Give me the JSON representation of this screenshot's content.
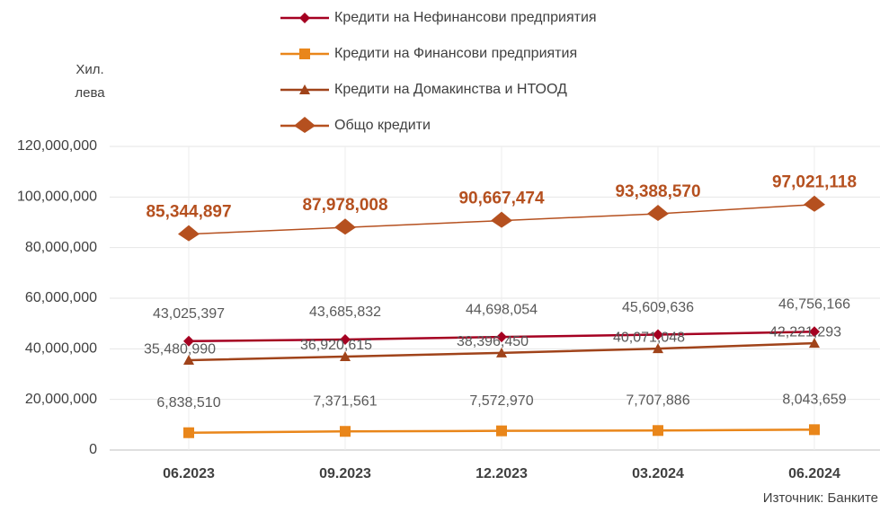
{
  "chart_data": {
    "type": "line",
    "y_label": [
      "Хил.",
      "лева"
    ],
    "source": "Източник: Банките",
    "categories": [
      "06.2023",
      "09.2023",
      "12.2023",
      "03.2024",
      "06.2024"
    ],
    "ylim": [
      0,
      120000000
    ],
    "yticks": [
      {
        "value": 0,
        "label": "0"
      },
      {
        "value": 20000000,
        "label": "20,000,000"
      },
      {
        "value": 40000000,
        "label": "40,000,000"
      },
      {
        "value": 60000000,
        "label": "60,000,000"
      },
      {
        "value": 80000000,
        "label": "80,000,000"
      },
      {
        "value": 100000000,
        "label": "100,000,000"
      },
      {
        "value": 120000000,
        "label": "120,000,000"
      }
    ],
    "grid": true,
    "series": [
      {
        "name": "Кредити на Нефинансови предприятия",
        "color": "#a50021",
        "marker": "diamond",
        "values": [
          43025397,
          43685832,
          44698054,
          45609636,
          46756166
        ],
        "value_labels": [
          "43,025,397",
          "43,685,832",
          "44,698,054",
          "45,609,636",
          "46,756,166"
        ]
      },
      {
        "name": "Кредити на Финансови предприятия",
        "color": "#e9861a",
        "marker": "square",
        "values": [
          6838510,
          7371561,
          7572970,
          7707886,
          8043659
        ],
        "value_labels": [
          "6,838,510",
          "7,371,561",
          "7,572,970",
          "7,707,886",
          "8,043,659"
        ]
      },
      {
        "name": "Кредити на Домакинства и НТООД",
        "color": "#a0431a",
        "marker": "triangle",
        "values": [
          35480990,
          36920615,
          38396450,
          40071048,
          42221293
        ],
        "value_labels": [
          "35,480,990",
          "36,920,615",
          "38,396,450",
          "40,071,048",
          "42,221,293"
        ]
      },
      {
        "name": "Общо кредити",
        "color": "#b5501f",
        "marker": "big",
        "values": [
          85344897,
          87978008,
          90667474,
          93388570,
          97021118
        ],
        "value_labels": [
          "85,344,897",
          "87,978,008",
          "90,667,474",
          "93,388,570",
          "97,021,118"
        ]
      }
    ]
  }
}
